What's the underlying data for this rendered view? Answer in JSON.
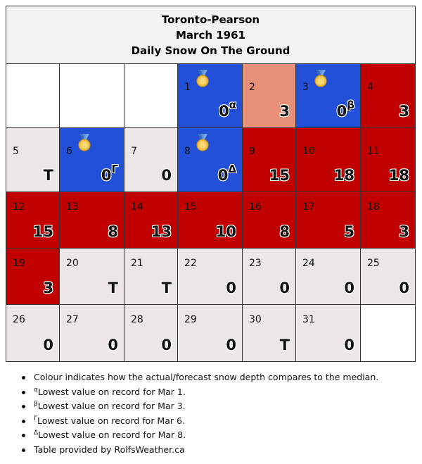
{
  "header": {
    "station": "Toronto-Pearson",
    "period": "March 1961",
    "subject": "Daily Snow On The Ground"
  },
  "colors": {
    "record_low": "#2350d8",
    "below_median": "#e89078",
    "above_median": "#c10000",
    "near_median": "#ede6e8",
    "blank": "#ffffff"
  },
  "icons": {
    "medal": "medal-icon"
  },
  "calendar": {
    "weeks": [
      [
        {
          "day": "",
          "value": "",
          "sup": "",
          "category": "blank"
        },
        {
          "day": "",
          "value": "",
          "sup": "",
          "category": "blank"
        },
        {
          "day": "",
          "value": "",
          "sup": "",
          "category": "blank"
        },
        {
          "day": "1",
          "value": "0",
          "sup": "α",
          "category": "record_low",
          "medal": true
        },
        {
          "day": "2",
          "value": "3",
          "sup": "",
          "category": "below_median"
        },
        {
          "day": "3",
          "value": "0",
          "sup": "β",
          "category": "record_low",
          "medal": true
        },
        {
          "day": "4",
          "value": "3",
          "sup": "",
          "category": "above_median"
        }
      ],
      [
        {
          "day": "5",
          "value": "T",
          "sup": "",
          "category": "near_median"
        },
        {
          "day": "6",
          "value": "0",
          "sup": "Γ",
          "category": "record_low",
          "medal": true
        },
        {
          "day": "7",
          "value": "0",
          "sup": "",
          "category": "near_median"
        },
        {
          "day": "8",
          "value": "0",
          "sup": "Δ",
          "category": "record_low",
          "medal": true
        },
        {
          "day": "9",
          "value": "15",
          "sup": "",
          "category": "above_median"
        },
        {
          "day": "10",
          "value": "18",
          "sup": "",
          "category": "above_median"
        },
        {
          "day": "11",
          "value": "18",
          "sup": "",
          "category": "above_median"
        }
      ],
      [
        {
          "day": "12",
          "value": "15",
          "sup": "",
          "category": "above_median"
        },
        {
          "day": "13",
          "value": "8",
          "sup": "",
          "category": "above_median"
        },
        {
          "day": "14",
          "value": "13",
          "sup": "",
          "category": "above_median"
        },
        {
          "day": "15",
          "value": "10",
          "sup": "",
          "category": "above_median"
        },
        {
          "day": "16",
          "value": "8",
          "sup": "",
          "category": "above_median"
        },
        {
          "day": "17",
          "value": "5",
          "sup": "",
          "category": "above_median"
        },
        {
          "day": "18",
          "value": "3",
          "sup": "",
          "category": "above_median"
        }
      ],
      [
        {
          "day": "19",
          "value": "3",
          "sup": "",
          "category": "above_median"
        },
        {
          "day": "20",
          "value": "T",
          "sup": "",
          "category": "near_median"
        },
        {
          "day": "21",
          "value": "T",
          "sup": "",
          "category": "near_median"
        },
        {
          "day": "22",
          "value": "0",
          "sup": "",
          "category": "near_median"
        },
        {
          "day": "23",
          "value": "0",
          "sup": "",
          "category": "near_median"
        },
        {
          "day": "24",
          "value": "0",
          "sup": "",
          "category": "near_median"
        },
        {
          "day": "25",
          "value": "0",
          "sup": "",
          "category": "near_median"
        }
      ],
      [
        {
          "day": "26",
          "value": "0",
          "sup": "",
          "category": "near_median"
        },
        {
          "day": "27",
          "value": "0",
          "sup": "",
          "category": "near_median"
        },
        {
          "day": "28",
          "value": "0",
          "sup": "",
          "category": "near_median"
        },
        {
          "day": "29",
          "value": "0",
          "sup": "",
          "category": "near_median"
        },
        {
          "day": "30",
          "value": "T",
          "sup": "",
          "category": "near_median"
        },
        {
          "day": "31",
          "value": "0",
          "sup": "",
          "category": "near_median"
        },
        {
          "day": "",
          "value": "",
          "sup": "",
          "category": "blank"
        }
      ]
    ]
  },
  "notes": [
    {
      "sup": "",
      "text": "Colour indicates how the actual/forecast snow depth compares to the median."
    },
    {
      "sup": "α",
      "text": "Lowest value on record for Mar 1."
    },
    {
      "sup": "β",
      "text": "Lowest value on record for Mar 3."
    },
    {
      "sup": "Γ",
      "text": "Lowest value on record for Mar 6."
    },
    {
      "sup": "Δ",
      "text": "Lowest value on record for Mar 8."
    },
    {
      "sup": "",
      "text": "Table provided by RolfsWeather.ca"
    }
  ]
}
